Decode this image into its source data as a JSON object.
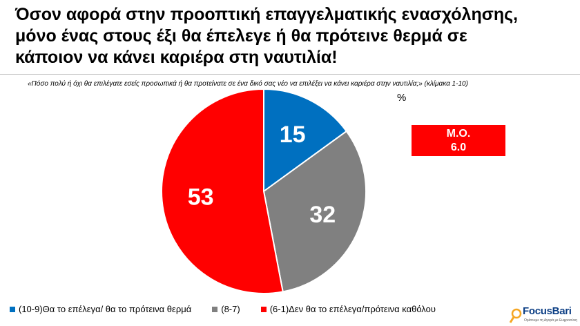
{
  "title_lines": [
    "Όσον αφορά στην προοπτική επαγγελματικής ενασχόλησης,",
    "μόνο ένας στους έξι θα έπελεγε ή θα πρότεινε θερμά σε",
    "κάποιον να κάνει καριέρα στη ναυτιλία!"
  ],
  "question": "«Πόσο πολύ ή όχι θα επιλέγατε εσείς προσωπικά ή θα προτείνατε σε ένα δικό σας νέο να επιλέξει να κάνει καριέρα στην ναυτιλία;» (κλίμακα 1-10)",
  "unit_label": "%",
  "mean": {
    "label": "Μ.Ο.",
    "value": "6.0",
    "color": "#ff0000"
  },
  "chart_data": {
    "type": "pie",
    "start": "top",
    "direction": "clockwise",
    "slices": [
      {
        "label": "(10-9)Θα το επέλεγα/ θα το πρότεινα θερμά",
        "value": 15,
        "color": "#0070c0"
      },
      {
        "label": "(8-7)",
        "value": 32,
        "color": "#808080"
      },
      {
        "label": "(6-1)Δεν θα το επέλεγα/πρότεινα καθόλου",
        "value": 53,
        "color": "#ff0000"
      }
    ]
  },
  "logo": {
    "name": "FocusBari",
    "tagline": "Ορίσουμε τη Αγορά με Ευφροσύνη"
  }
}
